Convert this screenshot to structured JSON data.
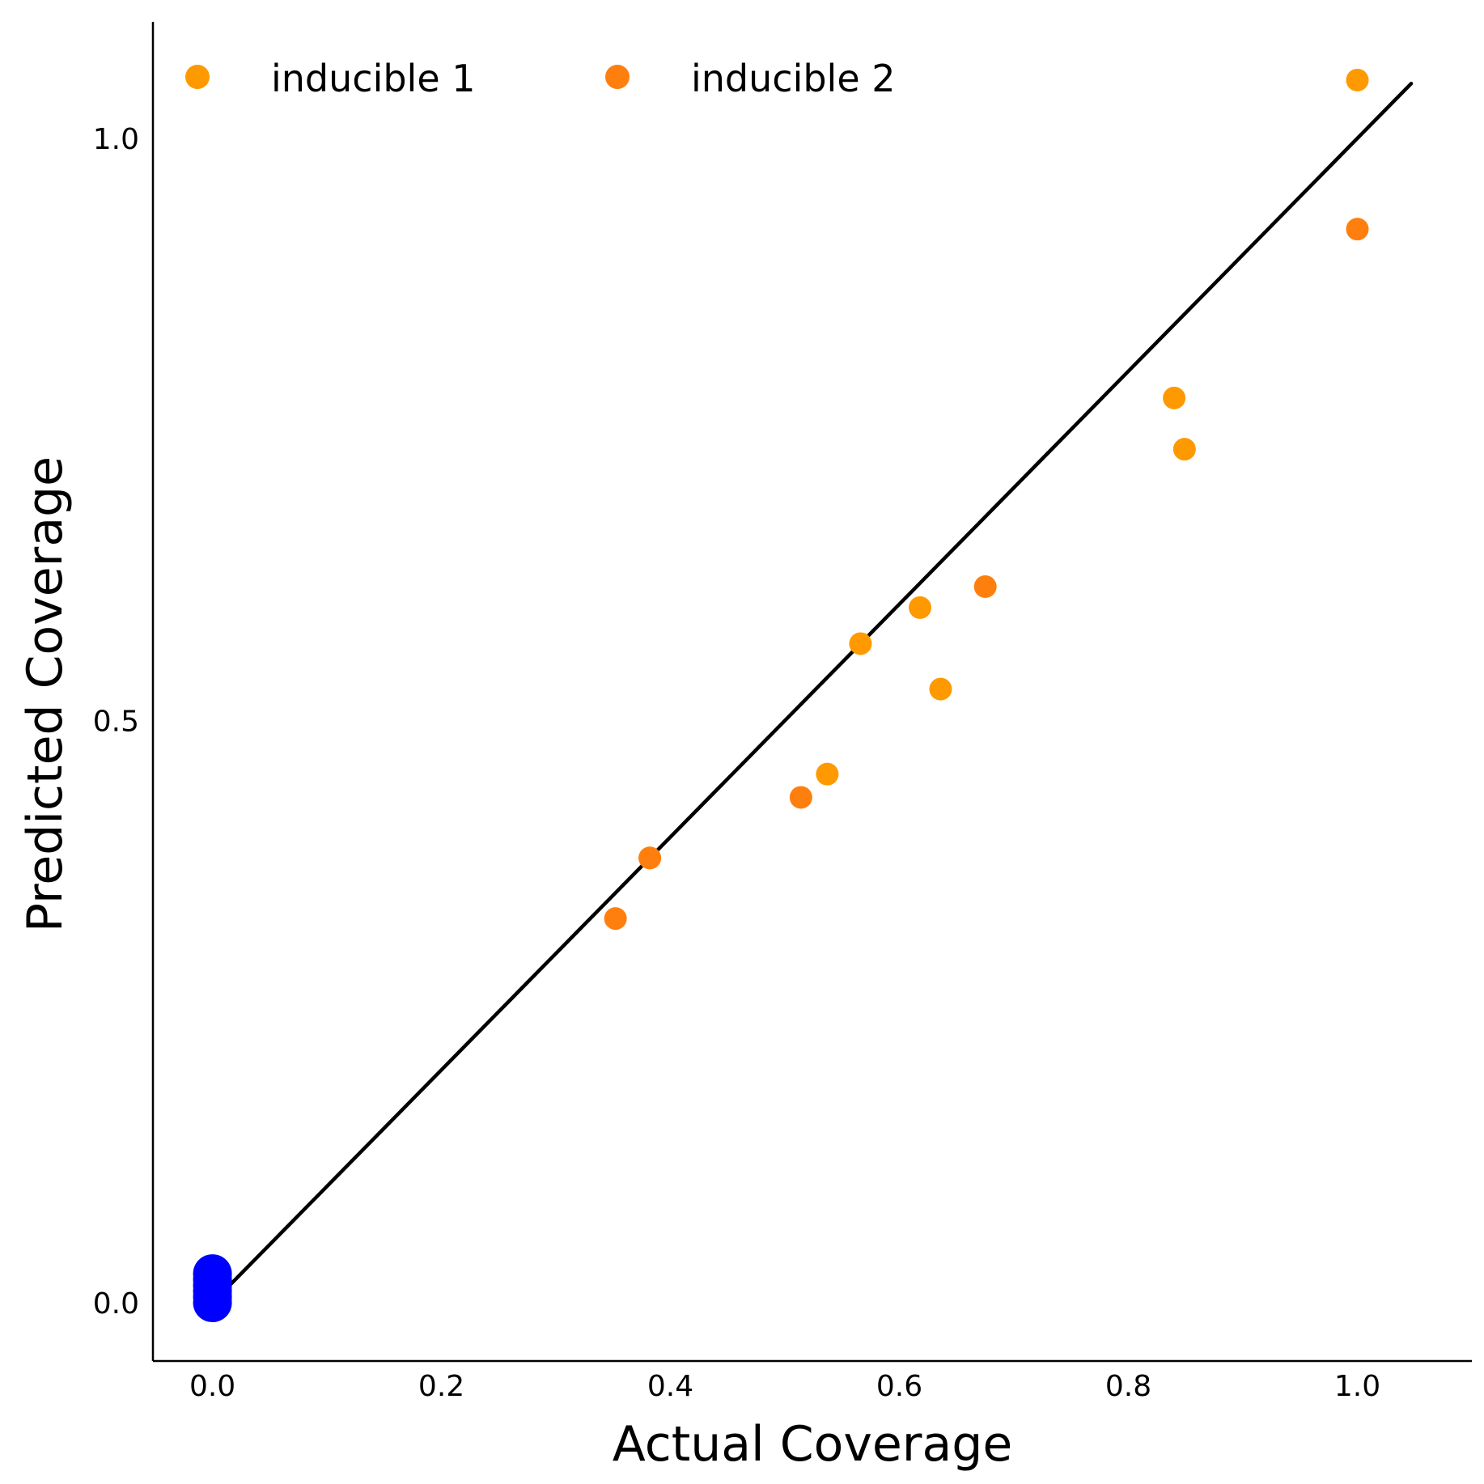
{
  "chart_data": {
    "type": "scatter",
    "title": "",
    "xlabel": "Actual Coverage",
    "ylabel": "Predicted Coverage",
    "xlim": [
      -0.052,
      1.1
    ],
    "ylim": [
      -0.05,
      1.1
    ],
    "x_ticks": [
      0.0,
      0.2,
      0.4,
      0.6,
      0.8,
      1.0
    ],
    "y_ticks": [
      0.0,
      0.5,
      1.0
    ],
    "x_tick_labels": [
      "0.0",
      "0.2",
      "0.4",
      "0.6",
      "0.8",
      "1.0"
    ],
    "y_tick_labels": [
      "0.0",
      "0.5",
      "1.0"
    ],
    "grid": false,
    "legend": {
      "placement": "top-left",
      "columns": 2
    },
    "series": [
      {
        "name": "inducible 1",
        "color": "#ff9900",
        "points": [
          {
            "x": 1.0,
            "y": 1.05
          },
          {
            "x": 0.84,
            "y": 0.777
          },
          {
            "x": 0.849,
            "y": 0.733
          },
          {
            "x": 0.618,
            "y": 0.597
          },
          {
            "x": 0.566,
            "y": 0.566
          },
          {
            "x": 0.636,
            "y": 0.527
          },
          {
            "x": 0.537,
            "y": 0.454
          },
          {
            "x": 0.382,
            "y": 0.382
          }
        ]
      },
      {
        "name": "inducible 2",
        "color": "#ff7f0e",
        "points": [
          {
            "x": 1.0,
            "y": 0.922
          },
          {
            "x": 0.675,
            "y": 0.615
          },
          {
            "x": 0.514,
            "y": 0.434
          },
          {
            "x": 0.352,
            "y": 0.33
          },
          {
            "x": 0.382,
            "y": 0.382
          }
        ]
      },
      {
        "name": "",
        "color": "#0000ff",
        "points": [
          {
            "x": 0.0,
            "y": 0.0
          },
          {
            "x": 0.0,
            "y": 0.005
          },
          {
            "x": 0.0,
            "y": 0.01
          },
          {
            "x": 0.0,
            "y": 0.015
          },
          {
            "x": 0.0,
            "y": 0.02
          },
          {
            "x": 0.0,
            "y": 0.025
          }
        ]
      }
    ],
    "reference_line": {
      "x": [
        0.0,
        1.047
      ],
      "y": [
        0.0,
        1.047
      ],
      "color": "#000000"
    }
  }
}
